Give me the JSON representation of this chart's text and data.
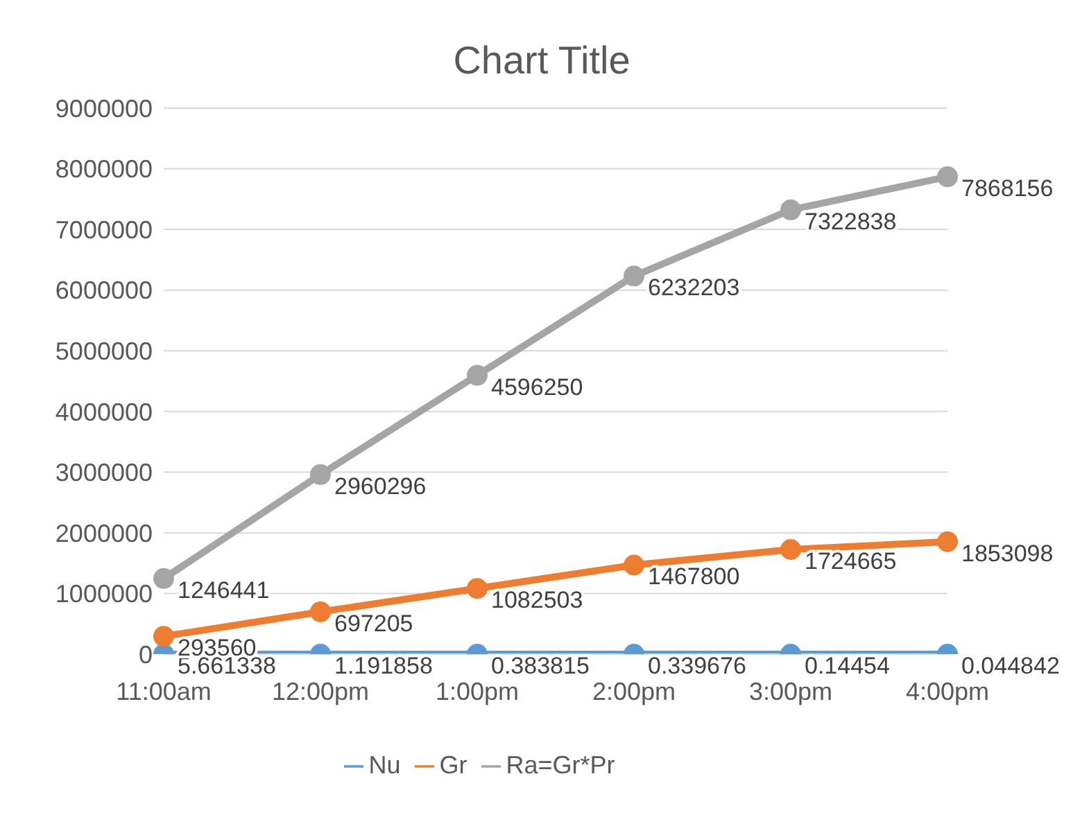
{
  "chart_data": {
    "type": "line",
    "title": "Chart Title",
    "categories": [
      "11:00am",
      "12:00pm",
      "1:00pm",
      "2:00pm",
      "3:00pm",
      "4:00pm"
    ],
    "series": [
      {
        "name": "Nu",
        "color": "#5b9bd5",
        "values": [
          5.661338,
          1.191858,
          0.383815,
          0.339676,
          0.14454,
          0.044842
        ]
      },
      {
        "name": "Gr",
        "color": "#ed7d31",
        "values": [
          293560,
          697205,
          1082503,
          1467800,
          1724665,
          1853098
        ]
      },
      {
        "name": "Ra=Gr*Pr",
        "color": "#a5a5a5",
        "values": [
          1246441,
          2960296,
          4596250,
          6232203,
          7322838,
          7868156
        ]
      }
    ],
    "ylim": [
      0,
      9000000
    ],
    "yticks": [
      0,
      1000000,
      2000000,
      3000000,
      4000000,
      5000000,
      6000000,
      7000000,
      8000000,
      9000000
    ],
    "grid": "y",
    "legend": "bottom",
    "marker": "circle",
    "line_style": "solid",
    "data_labels": true
  }
}
